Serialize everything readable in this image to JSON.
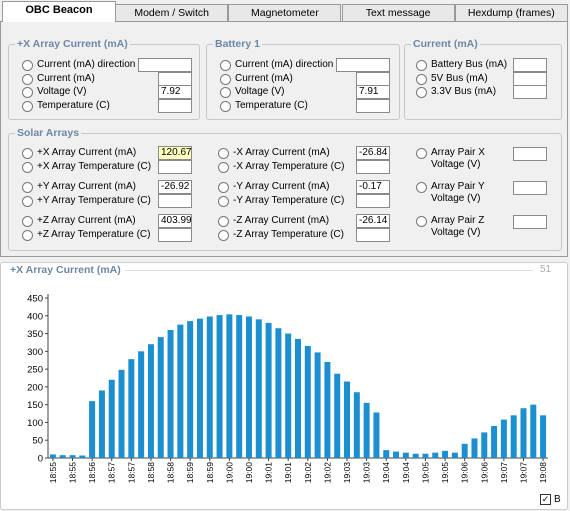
{
  "tabs": [
    "OBC Beacon",
    "Modem / Switch",
    "Magnetometer",
    "Text message",
    "Hexdump (frames)"
  ],
  "groups": [
    {
      "title": "+X Array Current (mA)",
      "fields": [
        {
          "label": "Current (mA) direction"
        },
        {
          "label": "Current (mA)"
        },
        {
          "label": "Voltage (V)",
          "value": "7.92"
        },
        {
          "label": "Temperature (C)"
        }
      ]
    },
    {
      "title": "Battery 1",
      "fields": [
        {
          "label": "Current (mA) direction"
        },
        {
          "label": "Current (mA)"
        },
        {
          "label": "Voltage (V)",
          "value": "7.91"
        },
        {
          "label": "Temperature (C)"
        }
      ]
    },
    {
      "title": "Current (mA)",
      "fields": [
        {
          "label": "Battery Bus (mA)"
        },
        {
          "label": "5V Bus (mA)"
        },
        {
          "label": "3.3V Bus (mA)"
        }
      ]
    }
  ],
  "solar": {
    "title": "Solar Arrays",
    "columns": [
      [
        {
          "label": "+X Array Current (mA)",
          "value": "120.67"
        },
        {
          "label": "+X Array Temperature (C)"
        },
        {
          "label": "+Y Array Current (mA)",
          "value": "-26.92"
        },
        {
          "label": "+Y Array Temperature (C)"
        },
        {
          "label": "+Z Array Current (mA)",
          "value": "403.99"
        },
        {
          "label": "+Z Array Temperature (C)"
        }
      ],
      [
        {
          "label": "-X Array Current (mA)",
          "value": "-26.84"
        },
        {
          "label": "-X Array Temperature (C)"
        },
        {
          "label": "-Y Array Current (mA)",
          "value": "-0.17"
        },
        {
          "label": "-Y Array Temperature (C)"
        },
        {
          "label": "-Z Array Current (mA)",
          "value": "-26.14"
        },
        {
          "label": "-Z Array Temperature (C)"
        }
      ],
      [
        {
          "label": "Array Pair X Voltage (V)"
        },
        {
          "label": "Array Pair Y Voltage (V)"
        },
        {
          "label": "Array Pair Z Voltage (V)"
        }
      ]
    ]
  },
  "chart_panel": {
    "title": "+X Array Current (mA)",
    "count": 51,
    "checkbox": "B"
  },
  "chart_data": {
    "type": "bar",
    "color": "#1c8fd0",
    "categories": [
      "18:55",
      null,
      "18:55",
      null,
      "18:56",
      null,
      "18:57",
      null,
      "18:57",
      null,
      "18:58",
      null,
      "18:58",
      null,
      "18:59",
      null,
      "18:59",
      null,
      "19:00",
      null,
      "19:00",
      null,
      "19:01",
      null,
      "19:01",
      null,
      "19:02",
      null,
      "19:02",
      null,
      "19:03",
      null,
      "19:03",
      null,
      "19:04",
      null,
      "19:04",
      null,
      "19:05",
      null,
      "19:05",
      null,
      "19:06",
      null,
      "19:06",
      null,
      "19:07",
      null,
      "19:07",
      null,
      "19:08"
    ],
    "values": [
      10,
      8,
      8,
      7,
      160,
      190,
      220,
      248,
      278,
      300,
      320,
      340,
      360,
      375,
      385,
      392,
      398,
      402,
      404,
      402,
      398,
      390,
      380,
      365,
      350,
      335,
      315,
      297,
      270,
      237,
      215,
      185,
      155,
      128,
      22,
      18,
      15,
      12,
      12,
      15,
      20,
      15,
      40,
      55,
      72,
      90,
      108,
      120,
      140,
      150,
      120
    ],
    "ylim": [
      0,
      450
    ],
    "yticks": [
      0,
      50,
      100,
      150,
      200,
      250,
      300,
      350,
      400,
      450
    ]
  }
}
